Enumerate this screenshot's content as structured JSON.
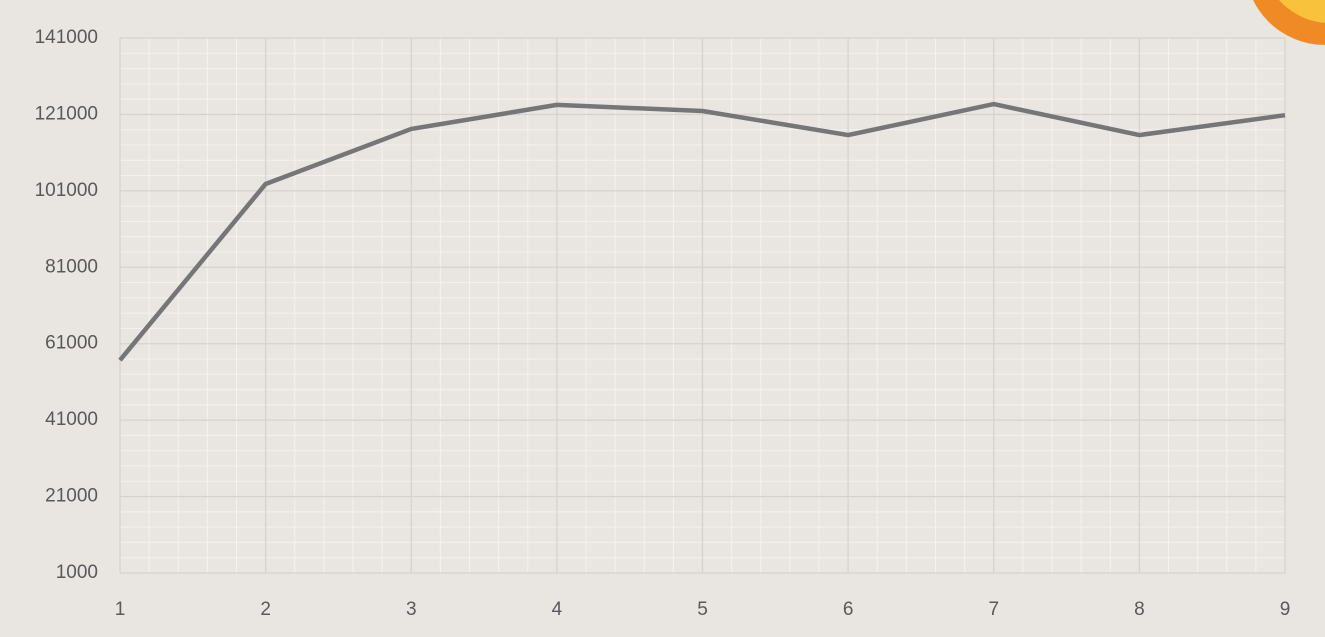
{
  "chart_data": {
    "type": "line",
    "x": [
      1,
      2,
      3,
      4,
      5,
      6,
      7,
      8,
      9
    ],
    "series": [
      {
        "color": "#767676",
        "values": [
          56700,
          102800,
          117200,
          123500,
          121900,
          115600,
          123700,
          115600,
          120800
        ]
      }
    ],
    "xlim": [
      1,
      9
    ],
    "xticks": [
      1,
      2,
      3,
      4,
      5,
      6,
      7,
      8,
      9
    ],
    "ylim": [
      1000,
      141000
    ],
    "yticks": [
      1000,
      21000,
      41000,
      61000,
      81000,
      101000,
      121000,
      141000
    ],
    "grid": true,
    "minor_divisions": 5
  }
}
